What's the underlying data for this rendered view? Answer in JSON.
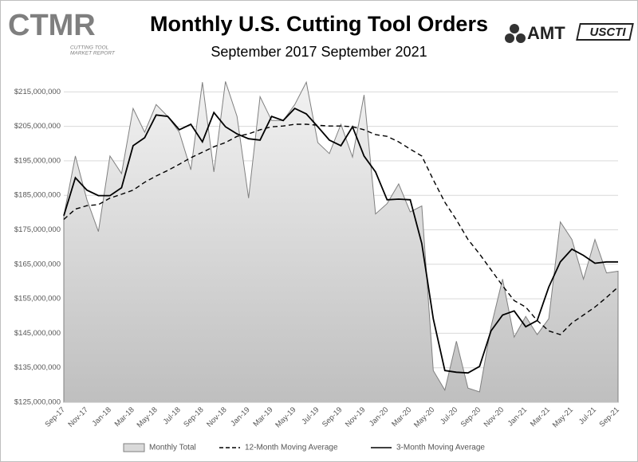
{
  "logos": {
    "left": {
      "mark": "CTMR",
      "caption": [
        "CUTTING TOOL",
        "MARKET REPORT"
      ]
    },
    "right": {
      "amt": "AMT",
      "uscti": "USCTI"
    }
  },
  "chart_data": {
    "type": "line",
    "title": "Monthly U.S. Cutting Tool Orders",
    "subtitle": "September 2017 September 2021",
    "categories": [
      "Sep-17",
      null,
      "Nov-17",
      null,
      "Jan-18",
      null,
      "Mar-18",
      null,
      "May-18",
      null,
      "Jul-18",
      null,
      "Sep-18",
      null,
      "Nov-18",
      null,
      "Jan-19",
      null,
      "Mar-19",
      null,
      "May-19",
      null,
      "Jul-19",
      null,
      "Sep-19",
      null,
      "Nov-19",
      null,
      "Jan-20",
      null,
      "Mar-20",
      null,
      "May-20",
      null,
      "Jul-20",
      null,
      "Sep-20",
      null,
      "Nov-20",
      null,
      "Jan-21",
      null,
      "Mar-21",
      null,
      "May-21",
      null,
      "Jul-21",
      null,
      "Sep-21"
    ],
    "series": [
      {
        "name": "Monthly Total",
        "style": "area",
        "color": "#808080",
        "fill": "#d9d9d9",
        "values": [
          179100000,
          196400000,
          183700000,
          174500000,
          196400000,
          191300000,
          210200000,
          203300000,
          211300000,
          207900000,
          203300000,
          192400000,
          217800000,
          191800000,
          218000000,
          207900000,
          184200000,
          213600000,
          206700000,
          206700000,
          211300000,
          217800000,
          200300000,
          197100000,
          205600000,
          196100000,
          214100000,
          179600000,
          182600000,
          188300000,
          180200000,
          181900000,
          134200000,
          128500000,
          142700000,
          129100000,
          128000000,
          146900000,
          160700000,
          143900000,
          149900000,
          144600000,
          149200000,
          177300000,
          172200000,
          160700000,
          172200000,
          162500000,
          163000000
        ]
      },
      {
        "name": "12-Month Moving Average",
        "style": "dashed",
        "color": "#000000",
        "values": [
          178000000,
          181000000,
          182000000,
          182300000,
          184200000,
          185300000,
          186500000,
          188800000,
          190600000,
          192200000,
          194000000,
          195900000,
          197500000,
          199100000,
          200300000,
          202100000,
          202800000,
          204000000,
          204900000,
          205100000,
          205600000,
          205600000,
          205300000,
          205100000,
          205100000,
          204900000,
          204000000,
          202600000,
          202100000,
          200500000,
          198400000,
          196400000,
          189500000,
          183000000,
          177900000,
          172200000,
          168000000,
          163400000,
          158800000,
          154500000,
          152600000,
          148700000,
          145700000,
          144600000,
          148000000,
          150300000,
          152600000,
          155400000,
          158400000
        ]
      },
      {
        "name": "3-Month Moving Average",
        "style": "solid",
        "color": "#000000",
        "values": [
          179100000,
          190100000,
          186500000,
          184900000,
          184900000,
          187200000,
          199400000,
          201700000,
          208300000,
          207900000,
          204000000,
          205600000,
          200500000,
          209000000,
          204900000,
          202800000,
          201400000,
          201000000,
          207900000,
          206700000,
          210200000,
          208600000,
          204900000,
          201000000,
          199400000,
          204900000,
          196400000,
          191800000,
          183700000,
          183900000,
          183700000,
          171000000,
          149200000,
          134200000,
          133700000,
          133500000,
          135400000,
          145700000,
          150300000,
          151500000,
          146900000,
          148700000,
          158400000,
          165700000,
          169400000,
          167600000,
          165300000,
          165700000,
          165700000
        ]
      }
    ],
    "ylim": [
      125000000,
      219000000
    ],
    "yticks": [
      {
        "value": 125000000,
        "label": "$125,000,000"
      },
      {
        "value": 135000000,
        "label": "$135,000,000"
      },
      {
        "value": 145000000,
        "label": "$145,000,000"
      },
      {
        "value": 155000000,
        "label": "$155,000,000"
      },
      {
        "value": 165000000,
        "label": "$165,000,000"
      },
      {
        "value": 175000000,
        "label": "$175,000,000"
      },
      {
        "value": 185000000,
        "label": "$185,000,000"
      },
      {
        "value": 195000000,
        "label": "$195,000,000"
      },
      {
        "value": 205000000,
        "label": "$205,000,000"
      },
      {
        "value": 215000000,
        "label": "$215,000,000"
      }
    ],
    "grid": true,
    "legend": "bottom"
  }
}
